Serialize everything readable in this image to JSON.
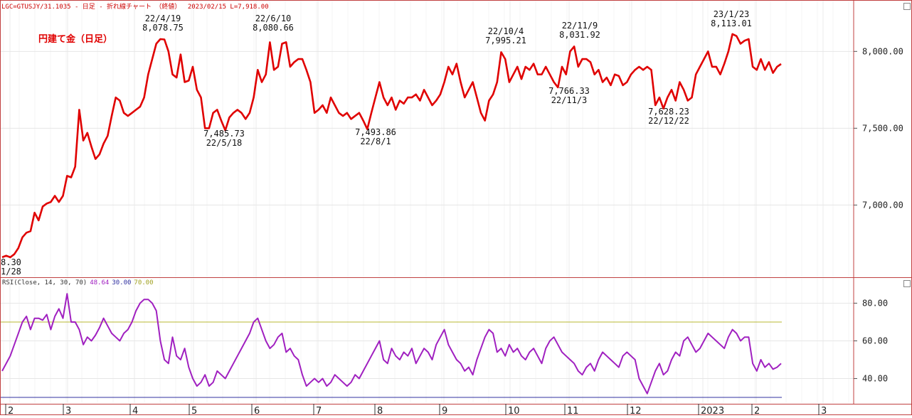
{
  "header": {
    "symbol": "LGC=GTUSJY/31.1035",
    "description": "- 日足 - 折れ線チャート （終値）",
    "date": "2023/02/15",
    "last": "L=7,918.00"
  },
  "chart_data": [
    {
      "type": "line",
      "title": "円建て金（日足）",
      "color": "#e00000",
      "yticks": [
        "8,000.00",
        "7,500.00",
        "7,000.00"
      ],
      "ytick_values": [
        8000,
        7500,
        7000
      ],
      "ylim": [
        6530,
        8330
      ],
      "xticks": [
        "2",
        "3",
        "4",
        "5",
        "6",
        "7",
        "8",
        "9",
        "10",
        "11",
        "12",
        "2023",
        "2",
        "3"
      ],
      "annotations": [
        {
          "date": "22/4/19",
          "value": "8,078.75"
        },
        {
          "date": "22/5/18",
          "value": "7,485.73"
        },
        {
          "date": "22/6/10",
          "value": "8,080.66"
        },
        {
          "date": "22/8/1",
          "value": "7,493.86"
        },
        {
          "date": "22/10/4",
          "value": "7,995.21"
        },
        {
          "date": "22/11/3",
          "value": "7,766.33"
        },
        {
          "date": "22/11/9",
          "value": "8,031.92"
        },
        {
          "date": "22/12/22",
          "value": "7,628.23"
        },
        {
          "date": "23/1/23",
          "value": "8,113.01"
        }
      ],
      "edge_label": {
        "value": "8.30",
        "date": "1/28"
      },
      "series": [
        {
          "values": [
            6660,
            6670,
            6660,
            6680,
            6720,
            6790,
            6820,
            6830,
            6950,
            6900,
            6990,
            7010,
            7020,
            7060,
            7020,
            7060,
            7190,
            7180,
            7250,
            7620,
            7420,
            7470,
            7380,
            7300,
            7330,
            7400,
            7450,
            7580,
            7700,
            7680,
            7600,
            7580,
            7600,
            7620,
            7640,
            7700,
            7850,
            7950,
            8050,
            8080,
            8078,
            8000,
            7850,
            7830,
            7980,
            7800,
            7810,
            7900,
            7750,
            7700,
            7500,
            7500,
            7600,
            7620,
            7550,
            7486,
            7570,
            7600,
            7620,
            7600,
            7560,
            7600,
            7700,
            7880,
            7800,
            7850,
            8060,
            7880,
            7900,
            8050,
            8060,
            7900,
            7930,
            7950,
            7950,
            7880,
            7800,
            7600,
            7620,
            7650,
            7600,
            7700,
            7650,
            7600,
            7580,
            7600,
            7560,
            7580,
            7600,
            7550,
            7494,
            7600,
            7700,
            7800,
            7700,
            7650,
            7700,
            7620,
            7680,
            7660,
            7700,
            7700,
            7720,
            7680,
            7750,
            7700,
            7650,
            7680,
            7720,
            7800,
            7900,
            7850,
            7920,
            7800,
            7700,
            7750,
            7800,
            7700,
            7600,
            7550,
            7680,
            7720,
            7800,
            7995,
            7950,
            7800,
            7850,
            7900,
            7820,
            7900,
            7880,
            7920,
            7850,
            7850,
            7900,
            7850,
            7800,
            7766,
            7900,
            7850,
            8000,
            8032,
            7900,
            7950,
            7950,
            7930,
            7850,
            7880,
            7800,
            7830,
            7780,
            7850,
            7840,
            7780,
            7800,
            7850,
            7880,
            7900,
            7880,
            7900,
            7880,
            7650,
            7700,
            7628,
            7700,
            7750,
            7680,
            7800,
            7750,
            7680,
            7700,
            7850,
            7900,
            7950,
            8000,
            7900,
            7900,
            7850,
            7920,
            8000,
            8113,
            8100,
            8050,
            8070,
            8080,
            7900,
            7880,
            7950,
            7880,
            7930,
            7860,
            7900,
            7918
          ]
        }
      ]
    },
    {
      "type": "line",
      "title": "",
      "color": "#a020c0",
      "yticks": [
        "80.00",
        "60.00",
        "40.00"
      ],
      "ytick_values": [
        80,
        60,
        40
      ],
      "ylim": [
        27,
        93
      ],
      "bands": [
        {
          "value": 70,
          "color": "#b8b830"
        },
        {
          "value": 30,
          "color": "#3030a0"
        }
      ],
      "legend": {
        "prefix": "RSI(Close, 14, 30, 70)",
        "rsi": "48.64",
        "low": "30.00",
        "high": "70.00"
      },
      "series": [
        {
          "values": [
            44,
            48,
            52,
            58,
            64,
            70,
            73,
            66,
            72,
            72,
            71,
            74,
            66,
            73,
            77,
            72,
            85,
            70,
            70,
            66,
            58,
            62,
            60,
            63,
            67,
            72,
            68,
            64,
            62,
            60,
            64,
            66,
            70,
            76,
            80,
            82,
            82,
            80,
            76,
            60,
            50,
            48,
            62,
            52,
            50,
            56,
            46,
            40,
            36,
            38,
            42,
            36,
            38,
            44,
            42,
            40,
            44,
            48,
            52,
            56,
            60,
            64,
            70,
            72,
            66,
            60,
            56,
            58,
            62,
            64,
            54,
            56,
            52,
            50,
            42,
            36,
            38,
            40,
            38,
            40,
            36,
            38,
            42,
            40,
            38,
            36,
            38,
            42,
            40,
            44,
            48,
            52,
            56,
            60,
            50,
            48,
            56,
            52,
            50,
            54,
            52,
            56,
            48,
            52,
            56,
            54,
            50,
            58,
            62,
            66,
            58,
            54,
            50,
            48,
            44,
            46,
            42,
            50,
            56,
            62,
            66,
            64,
            54,
            56,
            52,
            58,
            54,
            56,
            52,
            50,
            54,
            56,
            52,
            48,
            56,
            60,
            62,
            58,
            54,
            52,
            50,
            48,
            44,
            42,
            46,
            48,
            44,
            50,
            54,
            52,
            50,
            48,
            46,
            52,
            54,
            52,
            50,
            40,
            36,
            32,
            38,
            44,
            48,
            42,
            44,
            50,
            54,
            52,
            60,
            62,
            58,
            54,
            56,
            60,
            64,
            62,
            60,
            58,
            56,
            62,
            66,
            64,
            60,
            62,
            62,
            48,
            44,
            50,
            46,
            48,
            45,
            46,
            48
          ]
        }
      ]
    }
  ]
}
